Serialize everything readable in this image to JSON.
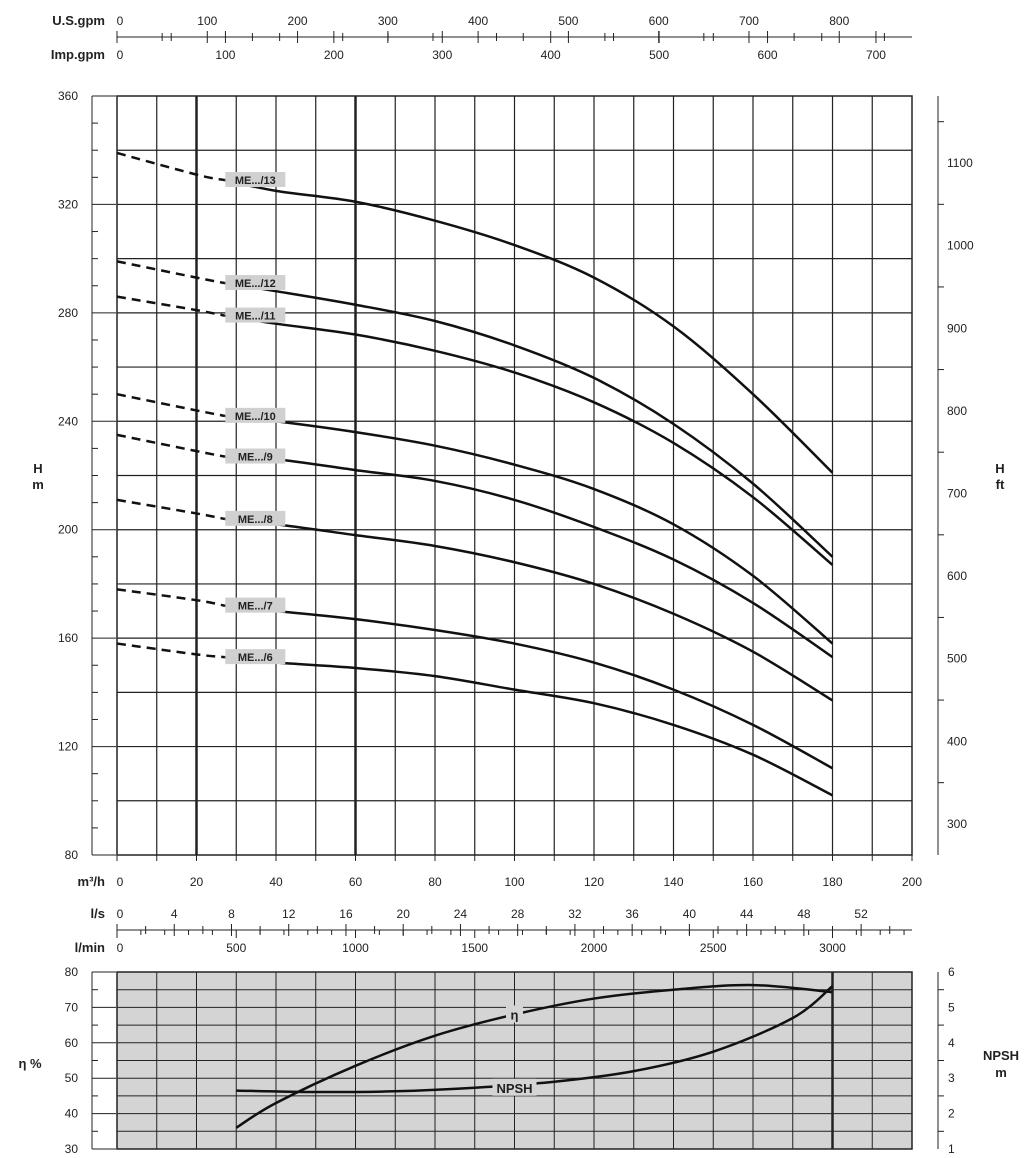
{
  "chart_data": [
    {
      "type": "line",
      "name": "head-curves",
      "xlabel": "m³/h",
      "ylabel_left": "H\nm",
      "ylabel_right": "H\nft",
      "xlim": [
        0,
        200
      ],
      "ylim": [
        80,
        360
      ],
      "x_ticks": [
        0,
        20,
        40,
        60,
        80,
        100,
        120,
        140,
        160,
        180,
        200
      ],
      "y_ticks": [
        80,
        120,
        160,
        200,
        240,
        280,
        320,
        360
      ],
      "y_right_ticks": [
        300,
        400,
        500,
        600,
        700,
        800,
        900,
        1000,
        1100
      ],
      "grid": true,
      "series": [
        {
          "name": "ME.../13",
          "dashed": [
            [
              0,
              339
            ],
            [
              20,
              331
            ],
            [
              27,
              329
            ]
          ],
          "solid": [
            [
              40,
              325
            ],
            [
              60,
              321
            ],
            [
              80,
              314
            ],
            [
              100,
              305
            ],
            [
              120,
              293
            ],
            [
              140,
              275
            ],
            [
              160,
              250
            ],
            [
              180,
              221
            ]
          ]
        },
        {
          "name": "ME.../12",
          "dashed": [
            [
              0,
              299
            ],
            [
              20,
              293
            ],
            [
              27,
              291
            ]
          ],
          "solid": [
            [
              40,
              288
            ],
            [
              60,
              283
            ],
            [
              80,
              277
            ],
            [
              100,
              268
            ],
            [
              120,
              256
            ],
            [
              140,
              239
            ],
            [
              160,
              217
            ],
            [
              180,
              190
            ]
          ]
        },
        {
          "name": "ME.../11",
          "dashed": [
            [
              0,
              286
            ],
            [
              20,
              281
            ],
            [
              27,
              279
            ]
          ],
          "solid": [
            [
              40,
              276
            ],
            [
              60,
              272
            ],
            [
              80,
              266
            ],
            [
              100,
              258
            ],
            [
              120,
              247
            ],
            [
              140,
              232
            ],
            [
              160,
              212
            ],
            [
              180,
              187
            ]
          ]
        },
        {
          "name": "ME.../10",
          "dashed": [
            [
              0,
              250
            ],
            [
              20,
              244
            ],
            [
              27,
              242
            ]
          ],
          "solid": [
            [
              40,
              240
            ],
            [
              60,
              236
            ],
            [
              80,
              231
            ],
            [
              100,
              224
            ],
            [
              120,
              215
            ],
            [
              140,
              202
            ],
            [
              160,
              183
            ],
            [
              180,
              158
            ]
          ]
        },
        {
          "name": "ME.../9",
          "dashed": [
            [
              0,
              235
            ],
            [
              20,
              229
            ],
            [
              27,
              227
            ]
          ],
          "solid": [
            [
              40,
              226
            ],
            [
              60,
              222
            ],
            [
              80,
              218
            ],
            [
              100,
              211
            ],
            [
              120,
              201
            ],
            [
              140,
              189
            ],
            [
              160,
              173
            ],
            [
              180,
              153
            ]
          ]
        },
        {
          "name": "ME.../8",
          "dashed": [
            [
              0,
              211
            ],
            [
              20,
              206
            ],
            [
              27,
              204
            ]
          ],
          "solid": [
            [
              40,
              202
            ],
            [
              60,
              198
            ],
            [
              80,
              194
            ],
            [
              100,
              188
            ],
            [
              120,
              180
            ],
            [
              140,
              169
            ],
            [
              160,
              155
            ],
            [
              180,
              137
            ]
          ]
        },
        {
          "name": "ME.../7",
          "dashed": [
            [
              0,
              178
            ],
            [
              20,
              174
            ],
            [
              27,
              172
            ]
          ],
          "solid": [
            [
              40,
              170
            ],
            [
              60,
              167
            ],
            [
              80,
              163
            ],
            [
              100,
              158
            ],
            [
              120,
              151
            ],
            [
              140,
              141
            ],
            [
              160,
              128
            ],
            [
              180,
              112
            ]
          ]
        },
        {
          "name": "ME.../6",
          "dashed": [
            [
              0,
              158
            ],
            [
              20,
              154
            ],
            [
              27,
              153
            ]
          ],
          "solid": [
            [
              40,
              151
            ],
            [
              60,
              149
            ],
            [
              80,
              146
            ],
            [
              100,
              141
            ],
            [
              120,
              136
            ],
            [
              140,
              128
            ],
            [
              160,
              117
            ],
            [
              180,
              102
            ]
          ]
        }
      ],
      "label_x": 28
    },
    {
      "type": "line",
      "name": "efficiency-npsh",
      "xlim": [
        0,
        200
      ],
      "ylim_left": [
        30,
        80
      ],
      "ylim_right": [
        1,
        6
      ],
      "ylabel_left": "η %",
      "ylabel_right": "NPSH\nm",
      "y_ticks": [
        30,
        40,
        50,
        60,
        70,
        80
      ],
      "y_right_ticks": [
        1,
        2,
        3,
        4,
        5,
        6
      ],
      "grid": true,
      "background": "#d4d4d4",
      "series": [
        {
          "name": "η",
          "axis": "left",
          "points": [
            [
              30,
              36
            ],
            [
              40,
              43
            ],
            [
              60,
              53.5
            ],
            [
              80,
              62
            ],
            [
              100,
              68
            ],
            [
              120,
              72.5
            ],
            [
              140,
              75
            ],
            [
              160,
              76.3
            ],
            [
              180,
              74.3
            ]
          ],
          "label_at": 100
        },
        {
          "name": "NPSH",
          "axis": "right",
          "points": [
            [
              30,
              2.65
            ],
            [
              50,
              2.61
            ],
            [
              70,
              2.63
            ],
            [
              90,
              2.73
            ],
            [
              110,
              2.9
            ],
            [
              130,
              3.2
            ],
            [
              150,
              3.75
            ],
            [
              170,
              4.7
            ],
            [
              180,
              5.6
            ]
          ],
          "label_at": 100
        }
      ]
    }
  ],
  "axes": {
    "usgpm": {
      "label": "U.S.gpm",
      "ticks": [
        "0",
        "100",
        "200",
        "300",
        "400",
        "500",
        "600",
        "700",
        "800"
      ],
      "unit_per_m3h": 4.4029
    },
    "impgpm": {
      "label": "Imp.gpm",
      "ticks": [
        "0",
        "100",
        "200",
        "300",
        "400",
        "500",
        "600",
        "700"
      ],
      "unit_per_m3h": 3.6662
    },
    "m3h": {
      "label": "m³/h",
      "ticks": [
        "0",
        "20",
        "40",
        "60",
        "80",
        "100",
        "120",
        "140",
        "160",
        "180",
        "200"
      ]
    },
    "ls": {
      "label": "l/s",
      "ticks": [
        "0",
        "4",
        "8",
        "12",
        "16",
        "20",
        "24",
        "28",
        "32",
        "36",
        "40",
        "44",
        "48",
        "52"
      ],
      "unit_per_m3h": 0.27778
    },
    "lmin": {
      "label": "l/min",
      "ticks": [
        "0",
        "500",
        "1000",
        "1500",
        "2000",
        "2500",
        "3000"
      ],
      "unit_per_m3h": 16.6667
    }
  },
  "labels": {
    "h_left": "H",
    "m_left": "m",
    "h_right": "H",
    "ft_right": "ft",
    "eta_pct": "η %",
    "npsh": "NPSH",
    "npsh_m": "m"
  }
}
